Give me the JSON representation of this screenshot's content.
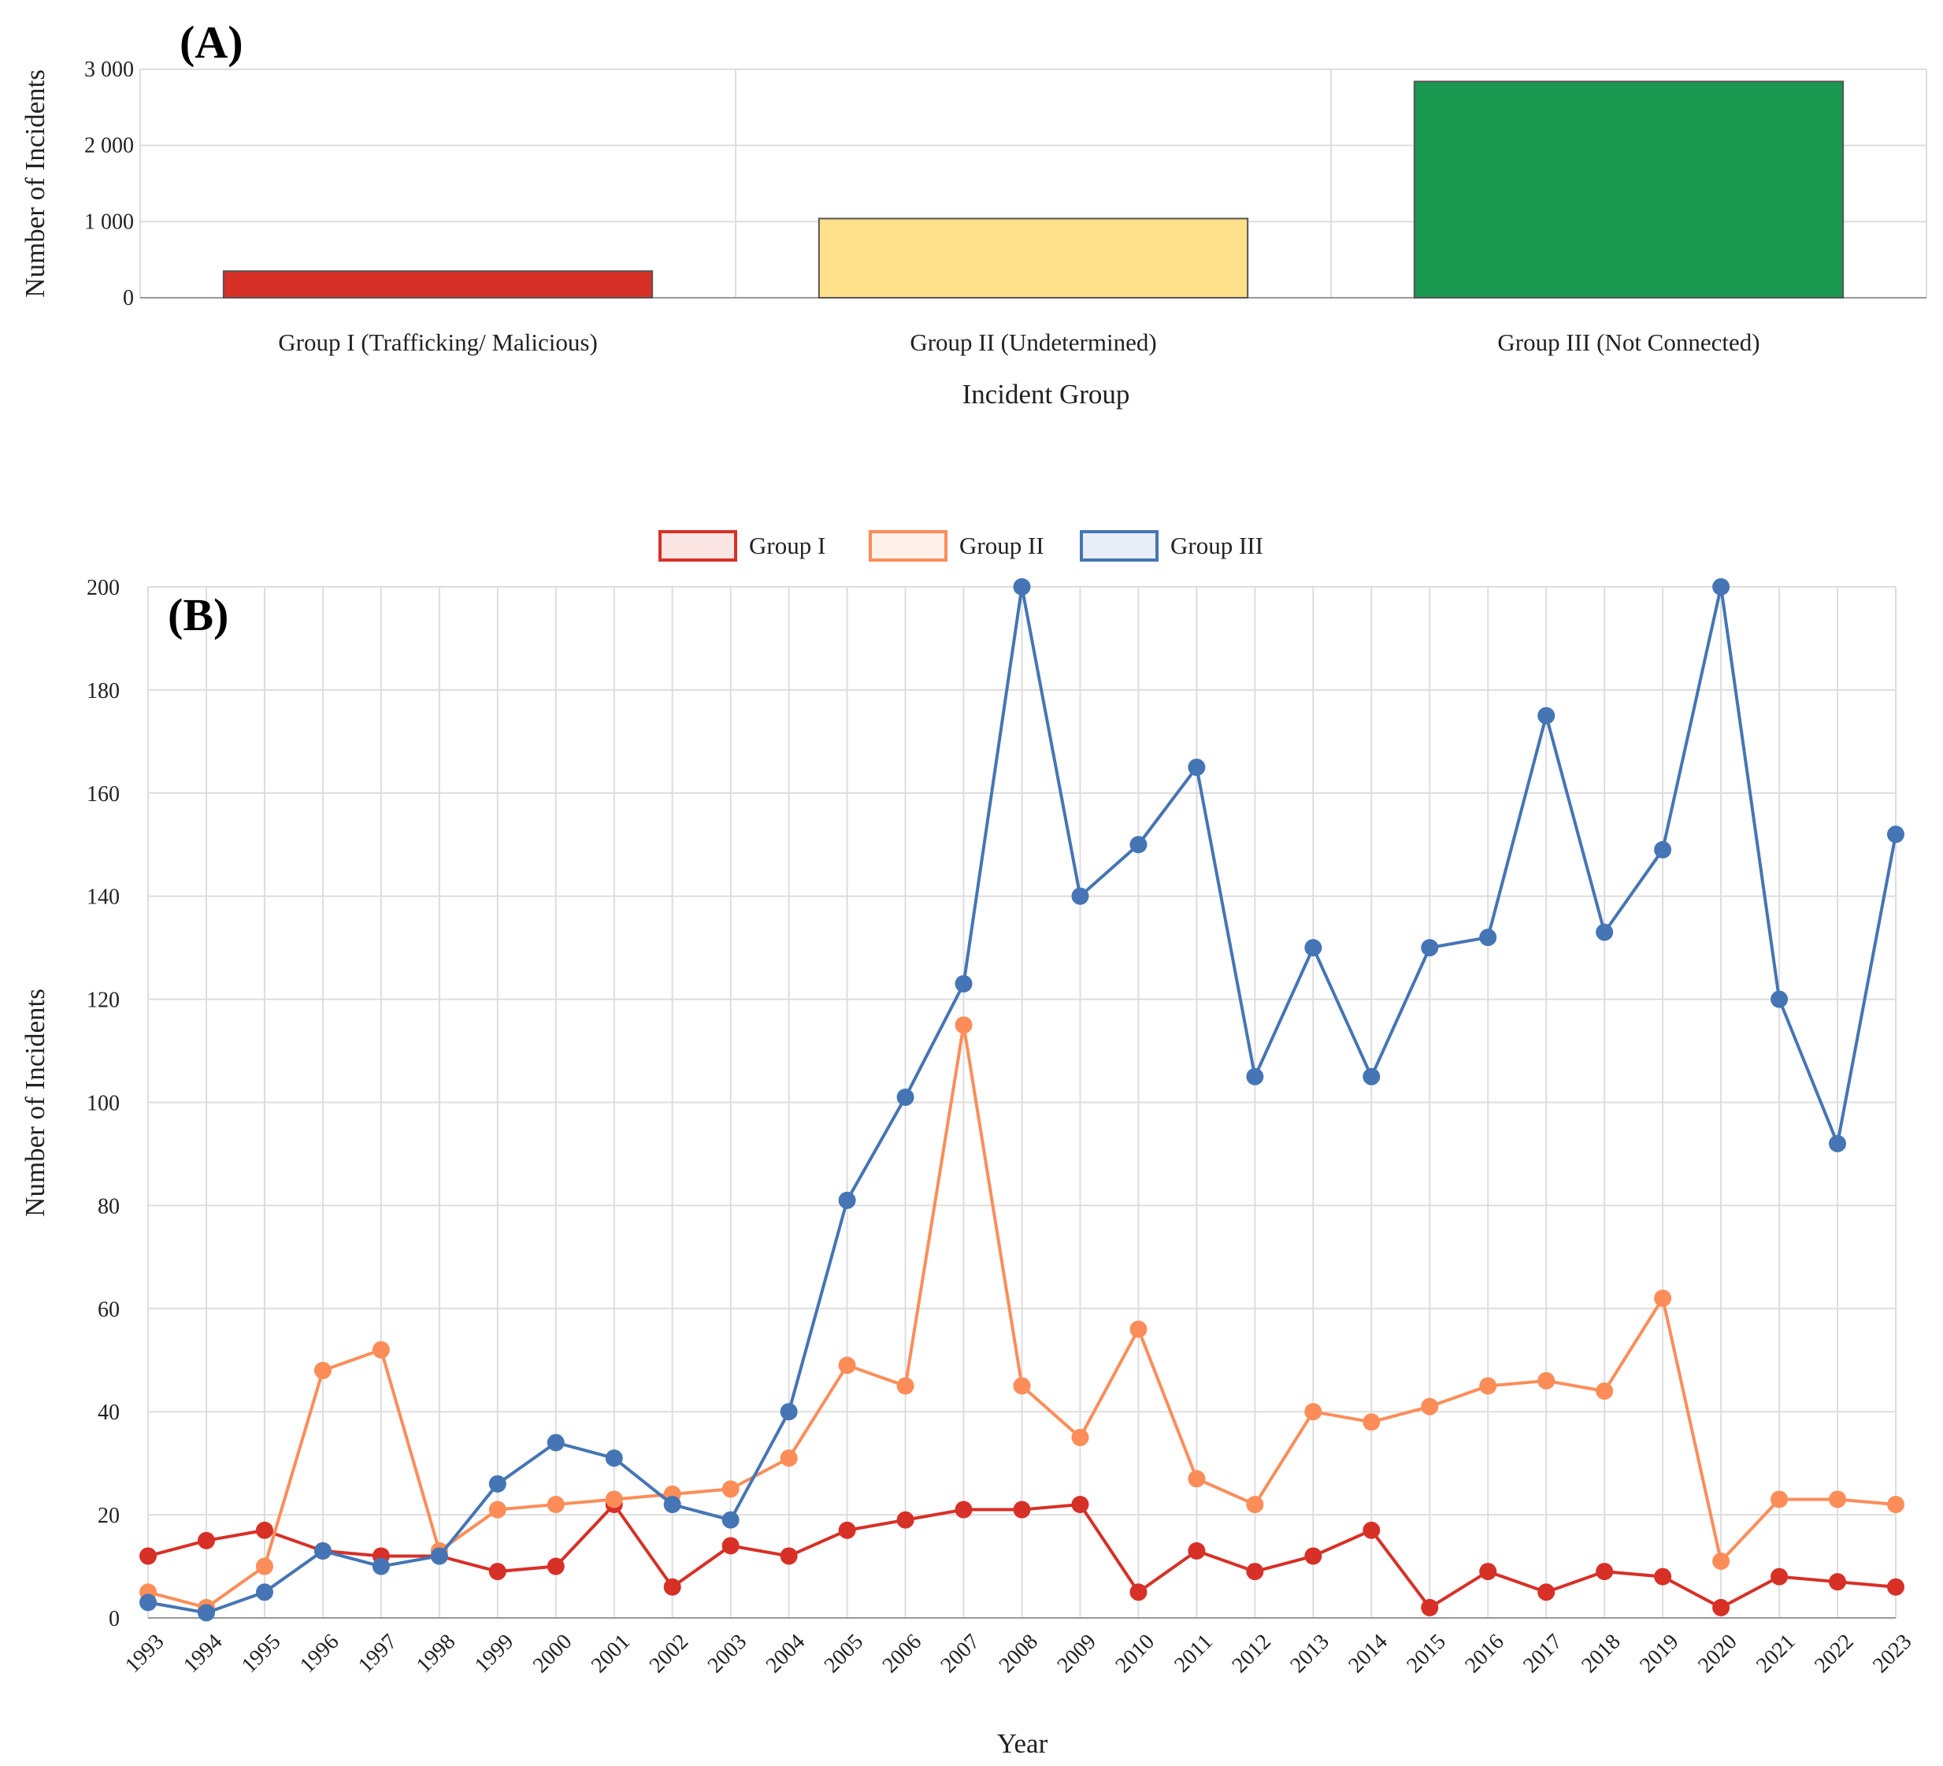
{
  "colors": {
    "grid": "#dddddd",
    "axis": "#999999",
    "group1": "#d73027",
    "group2": "#fc8d59",
    "group3": "#4575b4",
    "bar1": "#d73027",
    "bar2": "#fee08b",
    "bar3": "#1a9850"
  },
  "chart_data": [
    {
      "type": "bar",
      "panel_label": "(A)",
      "categories": [
        "Group I (Trafficking/ Malicious)",
        "Group II (Undetermined)",
        "Group III (Not Connected)"
      ],
      "values": [
        350,
        1040,
        2840
      ],
      "xlabel": "Incident Group",
      "ylabel": "Number of Incidents",
      "ylim": [
        0,
        3000
      ],
      "yticks": [
        0,
        1000,
        2000,
        3000
      ],
      "ytick_labels": [
        "0",
        "1 000",
        "2 000",
        "3 000"
      ],
      "grid": true
    },
    {
      "type": "line",
      "panel_label": "(B)",
      "x": [
        "1993",
        "1994",
        "1995",
        "1996",
        "1997",
        "1998",
        "1999",
        "2000",
        "2001",
        "2002",
        "2003",
        "2004",
        "2005",
        "2006",
        "2007",
        "2008",
        "2009",
        "2010",
        "2011",
        "2012",
        "2013",
        "2014",
        "2015",
        "2016",
        "2017",
        "2018",
        "2019",
        "2020",
        "2021",
        "2022",
        "2023"
      ],
      "series": [
        {
          "name": "Group I",
          "color_key": "group1",
          "values": [
            12,
            15,
            17,
            13,
            12,
            12,
            9,
            10,
            22,
            6,
            14,
            12,
            17,
            19,
            21,
            21,
            22,
            5,
            13,
            9,
            12,
            17,
            2,
            9,
            5,
            9,
            8,
            2,
            8,
            7,
            6
          ]
        },
        {
          "name": "Group II",
          "color_key": "group2",
          "values": [
            5,
            2,
            10,
            48,
            52,
            13,
            21,
            22,
            23,
            24,
            25,
            31,
            49,
            45,
            115,
            45,
            35,
            56,
            27,
            22,
            40,
            38,
            41,
            45,
            46,
            44,
            62,
            11,
            23,
            23,
            22
          ]
        },
        {
          "name": "Group III",
          "color_key": "group3",
          "values": [
            3,
            1,
            5,
            13,
            10,
            12,
            26,
            34,
            31,
            22,
            19,
            40,
            81,
            101,
            123,
            200,
            140,
            150,
            165,
            105,
            130,
            105,
            130,
            132,
            175,
            133,
            149,
            200,
            120,
            92,
            152
          ]
        }
      ],
      "xlabel": "Year",
      "ylabel": "Number of Incidents",
      "ylim": [
        0,
        200
      ],
      "yticks": [
        0,
        20,
        40,
        60,
        80,
        100,
        120,
        140,
        160,
        180,
        200
      ],
      "legend": "top-center",
      "grid": true
    }
  ]
}
